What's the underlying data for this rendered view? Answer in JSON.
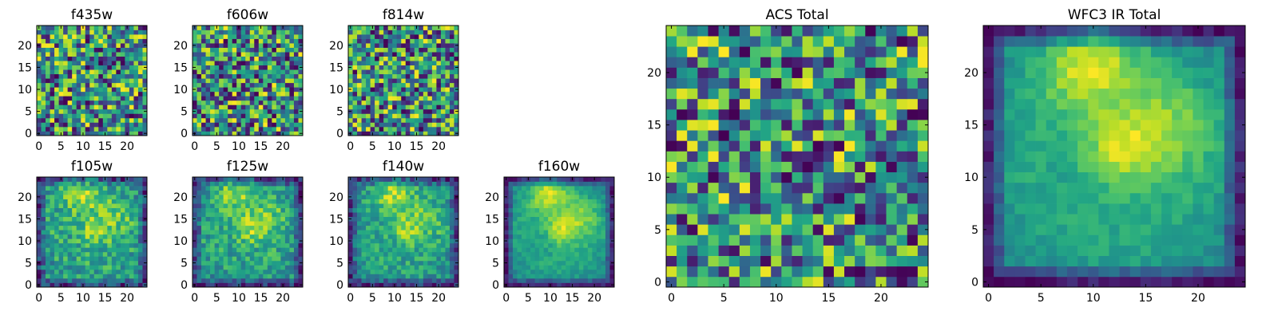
{
  "chart_data": [
    {
      "type": "heatmap",
      "title": "f435w",
      "xticks": [
        "0",
        "5",
        "10",
        "15",
        "20"
      ],
      "yticks": [
        "0",
        "5",
        "10",
        "15",
        "20"
      ],
      "xlim": [
        -0.5,
        24.5
      ],
      "ylim": [
        -0.5,
        24.5
      ],
      "grid": 25,
      "colormap": "viridis",
      "values": [],
      "seed": 11,
      "pattern": "noise",
      "noise": 0.6
    },
    {
      "type": "heatmap",
      "title": "f606w",
      "xticks": [
        "0",
        "5",
        "10",
        "15",
        "20"
      ],
      "yticks": [
        "0",
        "5",
        "10",
        "15",
        "20"
      ],
      "xlim": [
        -0.5,
        24.5
      ],
      "ylim": [
        -0.5,
        24.5
      ],
      "grid": 25,
      "colormap": "viridis",
      "values": [],
      "seed": 23,
      "pattern": "noise",
      "noise": 0.55
    },
    {
      "type": "heatmap",
      "title": "f814w",
      "xticks": [
        "0",
        "5",
        "10",
        "15",
        "20"
      ],
      "yticks": [
        "0",
        "5",
        "10",
        "15",
        "20"
      ],
      "xlim": [
        -0.5,
        24.5
      ],
      "ylim": [
        -0.5,
        24.5
      ],
      "grid": 25,
      "colormap": "viridis",
      "values": [],
      "seed": 37,
      "pattern": "noise",
      "noise": 0.55
    },
    {
      "type": "heatmap",
      "title": "f105w",
      "xticks": [
        "0",
        "5",
        "10",
        "15",
        "20"
      ],
      "yticks": [
        "0",
        "5",
        "10",
        "15",
        "20"
      ],
      "xlim": [
        -0.5,
        24.5
      ],
      "ylim": [
        -0.5,
        24.5
      ],
      "grid": 25,
      "colormap": "viridis",
      "values": [],
      "seed": 41,
      "pattern": "galaxy",
      "noise": 0.45
    },
    {
      "type": "heatmap",
      "title": "f125w",
      "xticks": [
        "0",
        "5",
        "10",
        "15",
        "20"
      ],
      "yticks": [
        "0",
        "5",
        "10",
        "15",
        "20"
      ],
      "xlim": [
        -0.5,
        24.5
      ],
      "ylim": [
        -0.5,
        24.5
      ],
      "grid": 25,
      "colormap": "viridis",
      "values": [],
      "seed": 53,
      "pattern": "galaxy",
      "noise": 0.4
    },
    {
      "type": "heatmap",
      "title": "f140w",
      "xticks": [
        "0",
        "5",
        "10",
        "15",
        "20"
      ],
      "yticks": [
        "0",
        "5",
        "10",
        "15",
        "20"
      ],
      "xlim": [
        -0.5,
        24.5
      ],
      "ylim": [
        -0.5,
        24.5
      ],
      "grid": 25,
      "colormap": "viridis",
      "values": [],
      "seed": 67,
      "pattern": "galaxy",
      "noise": 0.35
    },
    {
      "type": "heatmap",
      "title": "f160w",
      "xticks": [
        "0",
        "5",
        "10",
        "15",
        "20"
      ],
      "yticks": [
        "0",
        "5",
        "10",
        "15",
        "20"
      ],
      "xlim": [
        -0.5,
        24.5
      ],
      "ylim": [
        -0.5,
        24.5
      ],
      "grid": 25,
      "colormap": "viridis",
      "values": [],
      "seed": 71,
      "pattern": "galaxy",
      "noise": 0.15
    },
    {
      "type": "heatmap",
      "title": "ACS Total",
      "xticks": [
        "0",
        "5",
        "10",
        "15",
        "20"
      ],
      "yticks": [
        "0",
        "5",
        "10",
        "15",
        "20"
      ],
      "xlim": [
        -0.5,
        24.5
      ],
      "ylim": [
        -0.5,
        24.5
      ],
      "grid": 25,
      "colormap": "viridis",
      "values": [],
      "seed": 83,
      "pattern": "noise",
      "noise": 0.45
    },
    {
      "type": "heatmap",
      "title": "WFC3 IR Total",
      "xticks": [
        "0",
        "5",
        "10",
        "15",
        "20"
      ],
      "yticks": [
        "0",
        "5",
        "10",
        "15",
        "20"
      ],
      "xlim": [
        -0.5,
        24.5
      ],
      "ylim": [
        -0.5,
        24.5
      ],
      "grid": 25,
      "colormap": "viridis",
      "values": [],
      "seed": 97,
      "pattern": "galaxy",
      "noise": 0.12
    }
  ]
}
